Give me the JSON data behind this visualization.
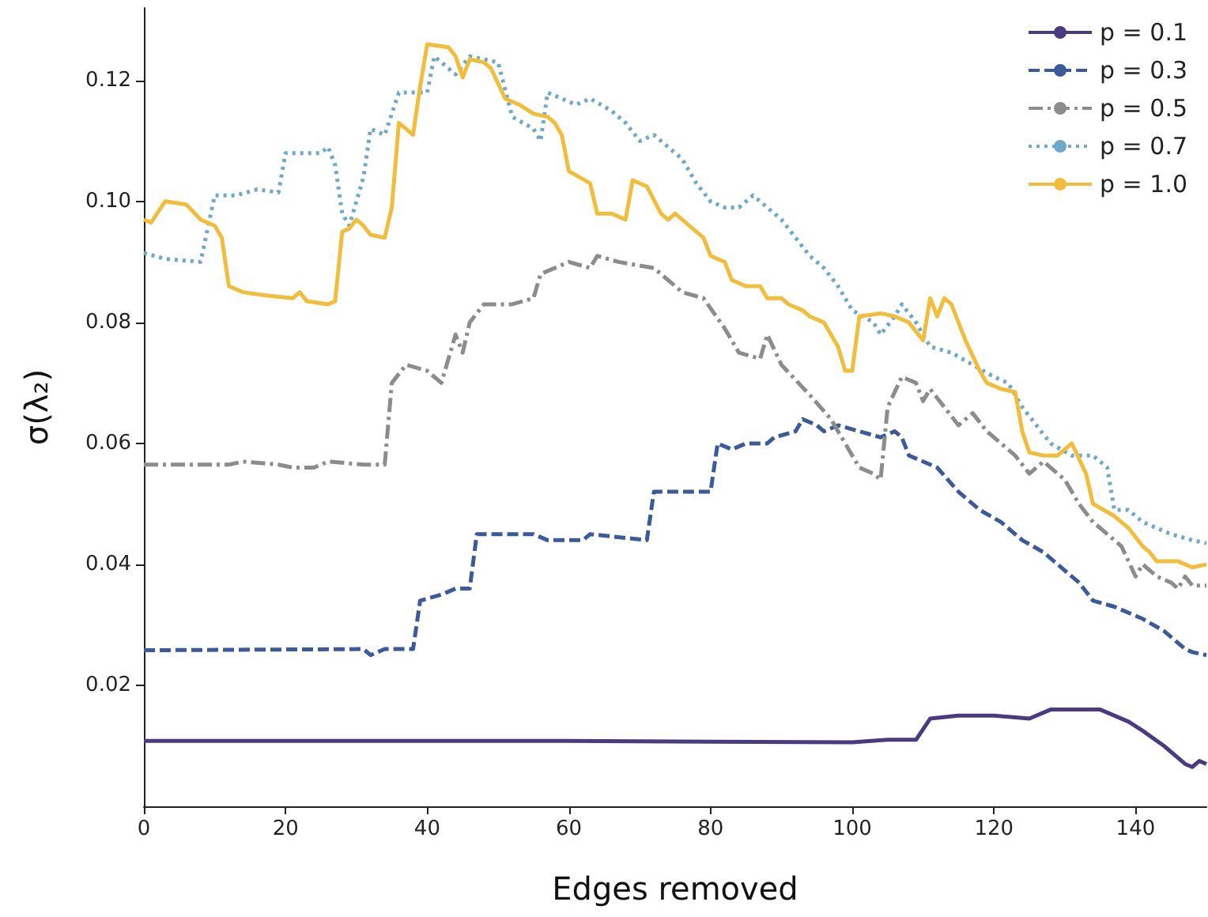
{
  "chart_data": {
    "type": "line",
    "xlabel": "Edges removed",
    "ylabel": "σ(λ₂)",
    "xlim": [
      0,
      150
    ],
    "xticks": [
      0,
      20,
      40,
      60,
      80,
      100,
      120,
      140
    ],
    "ylim": [
      0,
      0.132
    ],
    "yticks": [
      0.02,
      0.04,
      0.06,
      0.08,
      {
        "value": 0.1,
        "label": "0.10"
      },
      0.12
    ],
    "grid": false,
    "legend": "top right",
    "marker": "none",
    "series": [
      {
        "name": "p = 0.1",
        "color": "#4a3a7f",
        "line_style": "solid",
        "x": [
          0,
          20,
          40,
          60,
          80,
          100,
          105,
          109,
          111,
          115,
          120,
          125,
          128,
          135,
          136,
          139,
          141,
          144,
          147,
          148,
          149,
          150
        ],
        "values": [
          0.0108,
          0.0108,
          0.0108,
          0.0108,
          0.0107,
          0.0106,
          0.011,
          0.011,
          0.0145,
          0.015,
          0.015,
          0.0145,
          0.016,
          0.016,
          0.0155,
          0.014,
          0.0125,
          0.01,
          0.007,
          0.0065,
          0.0075,
          0.007
        ]
      },
      {
        "name": "p = 0.3",
        "color": "#3d5a98",
        "line_style": "dashed",
        "x": [
          0,
          31,
          32,
          34,
          38,
          39,
          42,
          44,
          46,
          47,
          55,
          57,
          62,
          63,
          71,
          72,
          80,
          81,
          83,
          85,
          88,
          89,
          92,
          93,
          95,
          96,
          98,
          101,
          104,
          106,
          107,
          108,
          112,
          115,
          118,
          121,
          124,
          127,
          130,
          132,
          134,
          137,
          141,
          144,
          147,
          148,
          150
        ],
        "values": [
          0.0258,
          0.026,
          0.025,
          0.026,
          0.026,
          0.034,
          0.035,
          0.036,
          0.036,
          0.045,
          0.045,
          0.044,
          0.044,
          0.045,
          0.044,
          0.052,
          0.052,
          0.06,
          0.059,
          0.06,
          0.06,
          0.061,
          0.062,
          0.064,
          0.063,
          0.062,
          0.063,
          0.062,
          0.061,
          0.062,
          0.061,
          0.058,
          0.056,
          0.052,
          0.049,
          0.047,
          0.044,
          0.042,
          0.039,
          0.037,
          0.034,
          0.033,
          0.031,
          0.029,
          0.026,
          0.0255,
          0.025
        ]
      },
      {
        "name": "p = 0.5",
        "color": "#8c8c8c",
        "line_style": "dashdot",
        "x": [
          0,
          12,
          14,
          19,
          21,
          24,
          26,
          31,
          34,
          35,
          37,
          40,
          42,
          44,
          45,
          46,
          48,
          52,
          55,
          56,
          60,
          63,
          64,
          67,
          72,
          76,
          79,
          82,
          84,
          87,
          88,
          90,
          94,
          97,
          99,
          101,
          103,
          104,
          105,
          107,
          109,
          110,
          111,
          113,
          115,
          117,
          119,
          121,
          123,
          125,
          127,
          130,
          132,
          134,
          136,
          138,
          140,
          141,
          143,
          145,
          146,
          147,
          148,
          150
        ],
        "values": [
          0.0565,
          0.0565,
          0.057,
          0.0565,
          0.056,
          0.056,
          0.057,
          0.0565,
          0.0565,
          0.07,
          0.073,
          0.072,
          0.07,
          0.078,
          0.075,
          0.08,
          0.083,
          0.083,
          0.084,
          0.088,
          0.09,
          0.089,
          0.091,
          0.09,
          0.089,
          0.085,
          0.084,
          0.079,
          0.075,
          0.074,
          0.078,
          0.073,
          0.068,
          0.064,
          0.06,
          0.056,
          0.055,
          0.054,
          0.066,
          0.071,
          0.07,
          0.067,
          0.069,
          0.066,
          0.063,
          0.065,
          0.062,
          0.06,
          0.058,
          0.055,
          0.057,
          0.054,
          0.05,
          0.047,
          0.045,
          0.043,
          0.038,
          0.04,
          0.038,
          0.037,
          0.036,
          0.038,
          0.0365,
          0.0365
        ]
      },
      {
        "name": "p = 0.7",
        "color": "#6fa8c8",
        "line_style": "dotted",
        "x": [
          0,
          3,
          8,
          10,
          13,
          16,
          19,
          20,
          25,
          26,
          27,
          28,
          29,
          31,
          32,
          34,
          36,
          40,
          41,
          44,
          46,
          50,
          52,
          55,
          56,
          57,
          61,
          63,
          66,
          68,
          70,
          72,
          74,
          76,
          78,
          80,
          82,
          84,
          86,
          88,
          90,
          92,
          94,
          96,
          98,
          100,
          103,
          104,
          106,
          107,
          109,
          111,
          114,
          117,
          120,
          122,
          124,
          126,
          128,
          131,
          134,
          136,
          137,
          139,
          141,
          143,
          145,
          148,
          150
        ],
        "values": [
          0.0915,
          0.0905,
          0.09,
          0.101,
          0.101,
          0.102,
          0.1015,
          0.108,
          0.108,
          0.109,
          0.106,
          0.098,
          0.096,
          0.104,
          0.112,
          0.111,
          0.118,
          0.118,
          0.124,
          0.121,
          0.124,
          0.123,
          0.114,
          0.112,
          0.11,
          0.118,
          0.116,
          0.117,
          0.115,
          0.113,
          0.11,
          0.111,
          0.109,
          0.107,
          0.103,
          0.1,
          0.099,
          0.099,
          0.101,
          0.099,
          0.097,
          0.094,
          0.091,
          0.089,
          0.086,
          0.082,
          0.08,
          0.078,
          0.081,
          0.083,
          0.08,
          0.076,
          0.075,
          0.073,
          0.071,
          0.07,
          0.066,
          0.063,
          0.06,
          0.058,
          0.058,
          0.056,
          0.049,
          0.049,
          0.047,
          0.046,
          0.045,
          0.044,
          0.0435
        ]
      },
      {
        "name": "p = 1.0",
        "color": "#f0bd3c",
        "line_style": "solid",
        "x": [
          0,
          1,
          3,
          6,
          8,
          10,
          11,
          12,
          14,
          17,
          21,
          22,
          23,
          26,
          27,
          28,
          29,
          30,
          31,
          32,
          34,
          35,
          36,
          38,
          39,
          40,
          43,
          44,
          45,
          46,
          48,
          49,
          51,
          53,
          55,
          57,
          58,
          59,
          60,
          63,
          64,
          66,
          68,
          69,
          71,
          73,
          74,
          75,
          78,
          79,
          80,
          82,
          83,
          85,
          87,
          88,
          90,
          91,
          93,
          94,
          96,
          97,
          98,
          99,
          100,
          101,
          104,
          106,
          108,
          110,
          111,
          112,
          113,
          114,
          116,
          118,
          119,
          121,
          123,
          124,
          125,
          127,
          129,
          131,
          133,
          134,
          137,
          139,
          141,
          142,
          143,
          146,
          148,
          150
        ],
        "values": [
          0.097,
          0.0965,
          0.1,
          0.0995,
          0.097,
          0.096,
          0.094,
          0.086,
          0.085,
          0.0845,
          0.084,
          0.085,
          0.0835,
          0.083,
          0.0835,
          0.095,
          0.0955,
          0.097,
          0.096,
          0.0945,
          0.094,
          0.099,
          0.113,
          0.111,
          0.119,
          0.126,
          0.1255,
          0.124,
          0.1205,
          0.1235,
          0.123,
          0.122,
          0.117,
          0.116,
          0.1145,
          0.114,
          0.113,
          0.111,
          0.105,
          0.103,
          0.098,
          0.098,
          0.097,
          0.1035,
          0.1025,
          0.098,
          0.097,
          0.098,
          0.095,
          0.094,
          0.091,
          0.09,
          0.087,
          0.086,
          0.086,
          0.084,
          0.084,
          0.083,
          0.082,
          0.081,
          0.08,
          0.078,
          0.076,
          0.072,
          0.072,
          0.081,
          0.0815,
          0.081,
          0.08,
          0.077,
          0.084,
          0.081,
          0.084,
          0.083,
          0.077,
          0.072,
          0.07,
          0.069,
          0.0685,
          0.062,
          0.0585,
          0.058,
          0.058,
          0.06,
          0.055,
          0.05,
          0.048,
          0.046,
          0.043,
          0.042,
          0.0405,
          0.0405,
          0.0395,
          0.04
        ]
      }
    ]
  }
}
